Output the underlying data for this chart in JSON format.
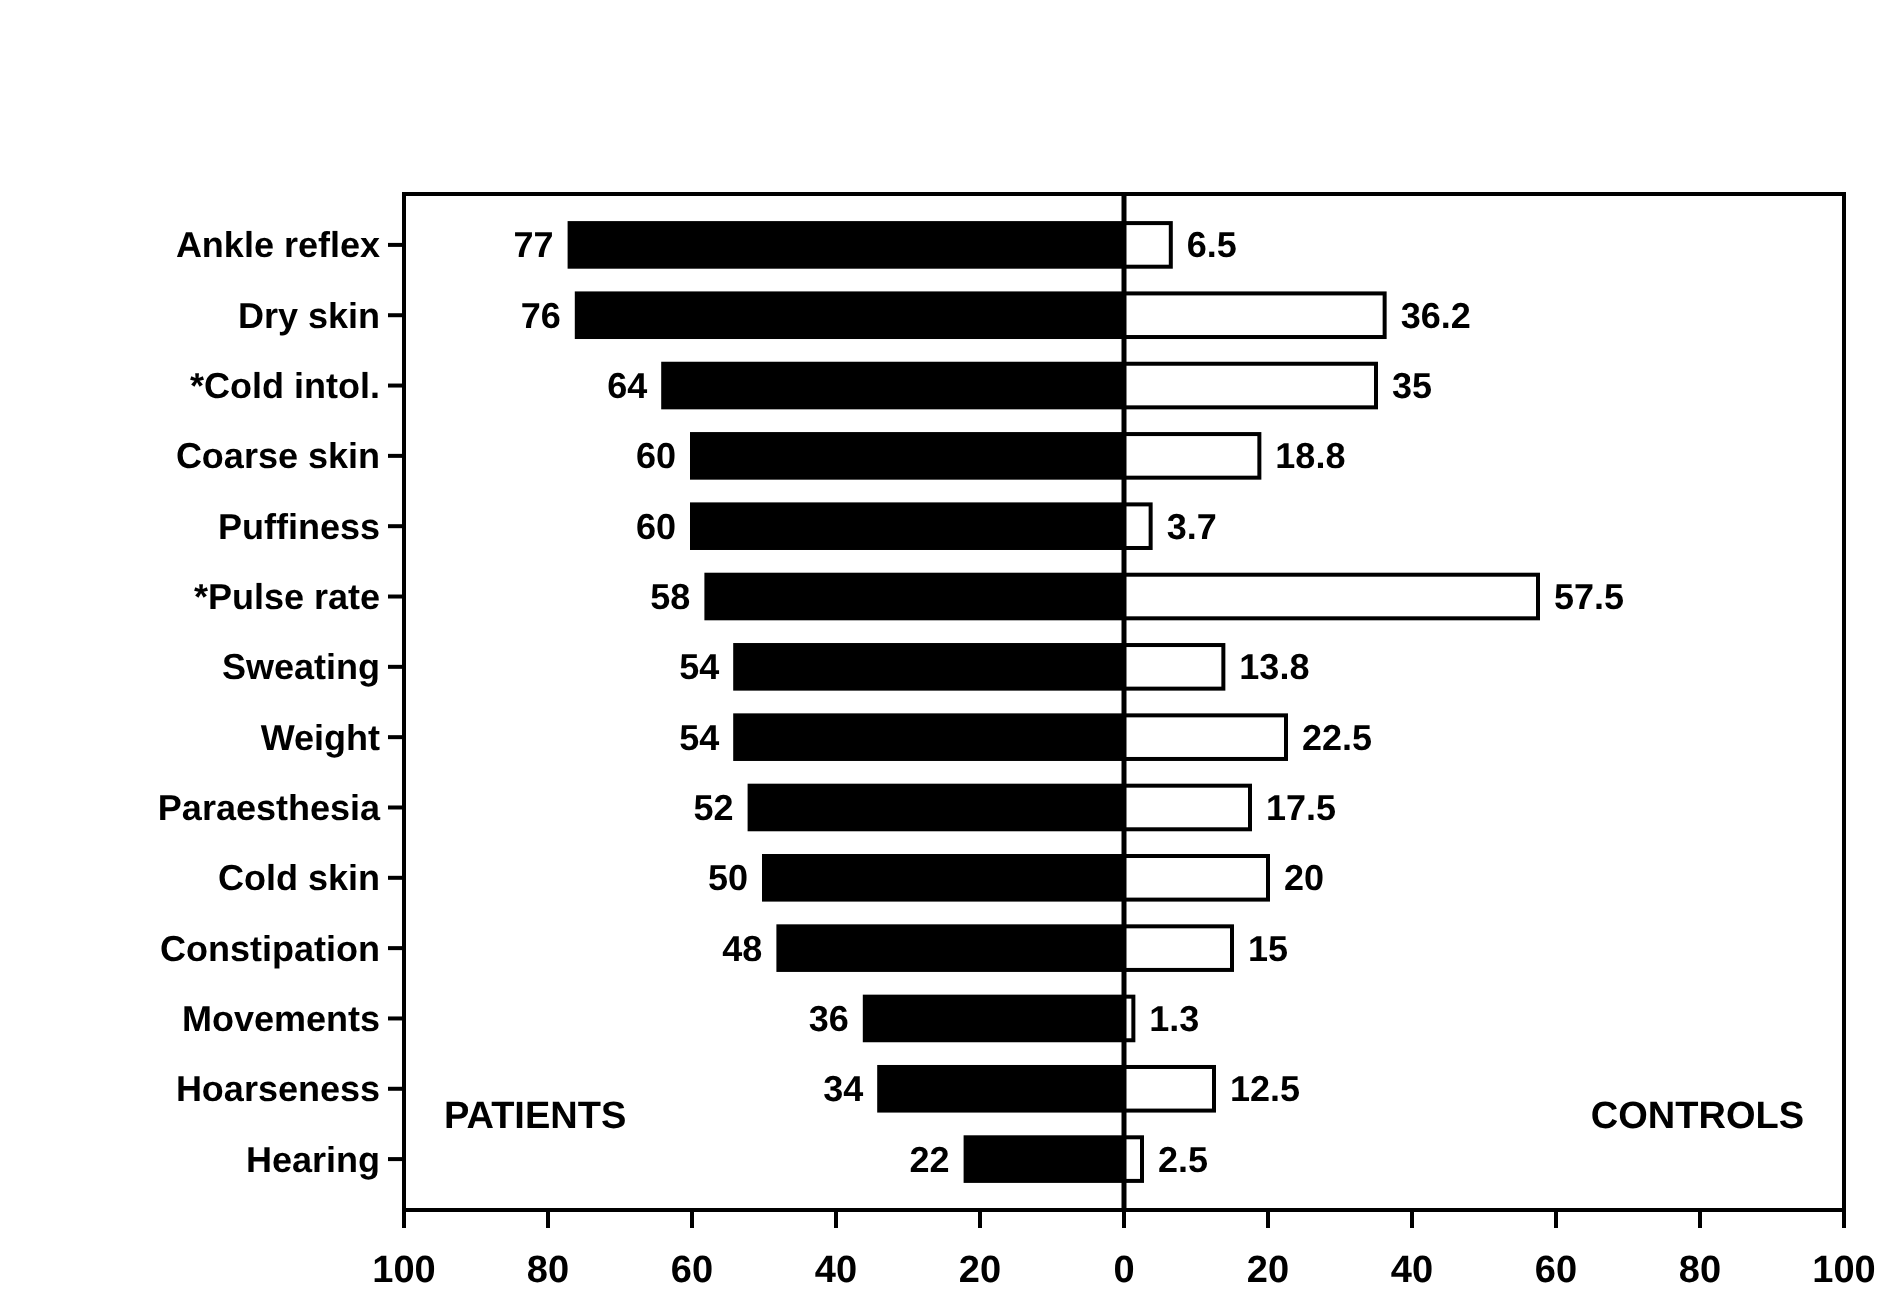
{
  "chart_data": {
    "type": "bar",
    "orientation": "horizontal",
    "categories": [
      "Ankle reflex",
      "Dry skin",
      "*Cold intol.",
      "Coarse skin",
      "Puffiness",
      "*Pulse rate",
      "Sweating",
      "Weight",
      "Paraesthesia",
      "Cold skin",
      "Constipation",
      "Movements",
      "Hoarseness",
      "Hearing"
    ],
    "series": [
      {
        "color": "#000000",
        "base": [
          -77,
          -76,
          -64,
          -60,
          -60,
          -58,
          -54,
          -54,
          -52,
          -50,
          -48,
          -36,
          -34,
          -22
        ],
        "values": [
          77,
          76,
          64,
          60,
          60,
          58,
          54,
          54,
          52,
          50,
          48,
          36,
          34,
          22
        ],
        "value_labels": [
          "77",
          "76",
          "64",
          "60",
          "60",
          "58",
          "54",
          "54",
          "52",
          "50",
          "48",
          "36",
          "34",
          "22"
        ]
      },
      {
        "color": "#ffffff",
        "values": [
          6.5,
          36.2,
          35,
          18.8,
          3.7,
          57.5,
          13.8,
          22.5,
          17.5,
          20,
          15,
          1.3,
          12.5,
          2.5
        ],
        "value_labels": [
          "6.5",
          "36.2",
          "35",
          "18.8",
          "3.7",
          "57.5",
          "13.8",
          "22.5",
          "17.5",
          "20",
          "15",
          "1.3",
          "12.5",
          "2.5"
        ]
      }
    ],
    "xlim": [
      -100,
      100
    ],
    "xticks": [
      {
        "value": -100,
        "label": "100"
      },
      {
        "value": -80,
        "label": "80"
      },
      {
        "value": -60,
        "label": "60"
      },
      {
        "value": -40,
        "label": "40"
      },
      {
        "value": -20,
        "label": "20"
      },
      0,
      20,
      40,
      60,
      80,
      100
    ],
    "ref_lines": [
      {
        "axis": "x",
        "value": 0,
        "color": "#000000"
      }
    ],
    "annotations": [
      "PATIENTS",
      "CONTROLS"
    ],
    "grid": false
  }
}
